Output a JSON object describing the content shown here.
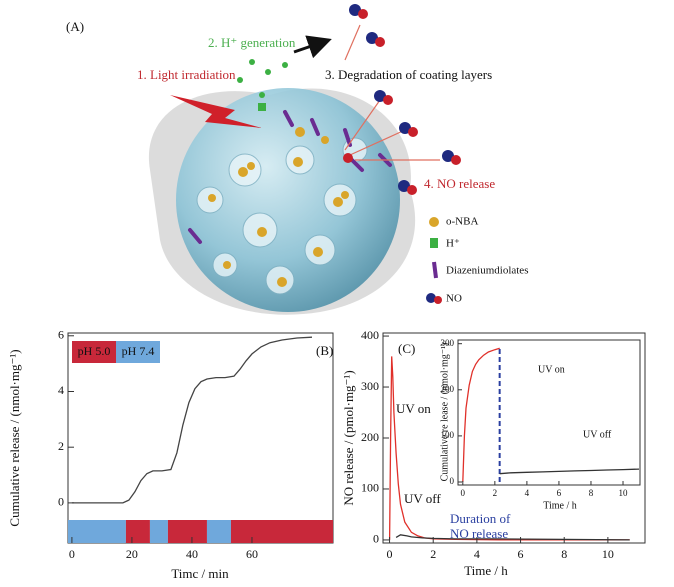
{
  "diagram": {
    "label": "(A)",
    "steps": [
      "1. Light irradiation",
      "2. H⁺ generation",
      "3. Degradation of coating layers",
      "4. NO release"
    ],
    "legend": [
      "o-NBA",
      "H⁺",
      "Diazeniumdiolates",
      "NO"
    ]
  },
  "chart_data": [
    {
      "type": "line",
      "x_label": "Timc / min",
      "y_label": "Cumulative release / (nmol·mg⁻¹)",
      "annotations": [
        "(B)"
      ],
      "xlim": [
        -1.3,
        87
      ],
      "xticks": [
        0,
        20,
        40,
        60
      ],
      "ylim": [
        -1.44,
        6.1
      ],
      "yticks": [
        0,
        2,
        4,
        6
      ],
      "series": [
        {
          "color": "#444444",
          "x": [
            0,
            10,
            17,
            19,
            21,
            23,
            25,
            27,
            30,
            33,
            35,
            37,
            39,
            41,
            43,
            45,
            48,
            51,
            54,
            56,
            58,
            60,
            63,
            66,
            70,
            75,
            80
          ],
          "values": [
            0,
            0,
            0,
            0.1,
            0.4,
            0.8,
            1.05,
            1.15,
            1.15,
            1.2,
            1.8,
            2.8,
            3.6,
            4.1,
            4.35,
            4.45,
            4.5,
            4.5,
            4.55,
            4.8,
            5.1,
            5.35,
            5.6,
            5.75,
            5.85,
            5.92,
            5.95
          ]
        }
      ],
      "legend": [
        {
          "name": "pH 5.0",
          "color": "#c8283a"
        },
        {
          "name": "pH 7.4",
          "color": "#6fa8dc"
        }
      ],
      "bands": [
        {
          "x": [
            -1.3,
            18
          ],
          "color": "#6fa8dc"
        },
        {
          "x": [
            18,
            26
          ],
          "color": "#c8283a"
        },
        {
          "x": [
            26,
            32
          ],
          "color": "#6fa8dc"
        },
        {
          "x": [
            32,
            45
          ],
          "color": "#c8283a"
        },
        {
          "x": [
            45,
            53
          ],
          "color": "#6fa8dc"
        },
        {
          "x": [
            53,
            87
          ],
          "color": "#c8283a"
        }
      ]
    },
    {
      "type": "line",
      "x_label": "Time / h",
      "y_label": "NO release / (pmol·mg⁻¹)",
      "annotations": [
        "(C)",
        "UV on",
        "UV off",
        "Duration of",
        "NO release"
      ],
      "xlim": [
        -0.3,
        11.7
      ],
      "xticks": [
        0,
        2,
        4,
        6,
        8,
        10
      ],
      "ylim": [
        -6,
        406
      ],
      "yticks": [
        0,
        100,
        200,
        300,
        400
      ],
      "series": [
        {
          "color": "#e0302a",
          "x": [
            0,
            0.05,
            0.1,
            0.15,
            0.2,
            0.3,
            0.4,
            0.5,
            0.7,
            1,
            1.3,
            1.6,
            2,
            3,
            5,
            11
          ],
          "values": [
            0,
            200,
            360,
            320,
            250,
            170,
            110,
            70,
            35,
            15,
            8,
            4,
            2,
            1,
            0,
            0
          ]
        },
        {
          "color": "#333333",
          "x": [
            0.3,
            0.5,
            0.8,
            1,
            1.5,
            2,
            3,
            5,
            8,
            11
          ],
          "values": [
            5,
            10,
            8,
            6,
            4,
            3,
            2,
            2,
            1,
            0
          ]
        }
      ]
    },
    {
      "type": "line",
      "x_label": "Time / h",
      "y_label": "Cumulative re lease / (nmol·mg⁻¹)",
      "annotations": [
        "UV on",
        "UV off"
      ],
      "xlim": [
        -0.3,
        11.06
      ],
      "xticks": [
        0,
        2,
        4,
        6,
        8,
        10
      ],
      "ylim": [
        -6.5,
        308
      ],
      "yticks": [
        0,
        100,
        200,
        300
      ],
      "series": [
        {
          "color": "#e0302a",
          "x": [
            0,
            0.1,
            0.2,
            0.4,
            0.6,
            0.8,
            1,
            1.3,
            1.6,
            2,
            2.3
          ],
          "values": [
            0,
            100,
            160,
            210,
            240,
            255,
            265,
            275,
            282,
            287,
            290
          ]
        },
        {
          "color": "#333333",
          "x": [
            2.3,
            3,
            4,
            5,
            6,
            7,
            8,
            9,
            10,
            11
          ],
          "values": [
            18,
            20,
            21,
            22,
            23,
            24,
            25,
            26,
            27,
            28
          ]
        }
      ],
      "vlines": [
        {
          "x": 2.3,
          "y": [
            0,
            290
          ],
          "color": "#2a3fa0"
        }
      ]
    }
  ]
}
